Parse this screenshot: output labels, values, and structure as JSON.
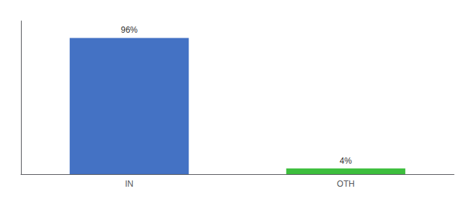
{
  "chart_data": {
    "type": "bar",
    "categories": [
      "IN",
      "OTH"
    ],
    "values": [
      96,
      4
    ],
    "colors": [
      "#4472C4",
      "#3DBE3D"
    ],
    "value_labels": [
      "96%",
      "4%"
    ],
    "data_labels": true,
    "ylim": [
      0,
      108
    ],
    "tick_labels": "x",
    "grid": false
  }
}
